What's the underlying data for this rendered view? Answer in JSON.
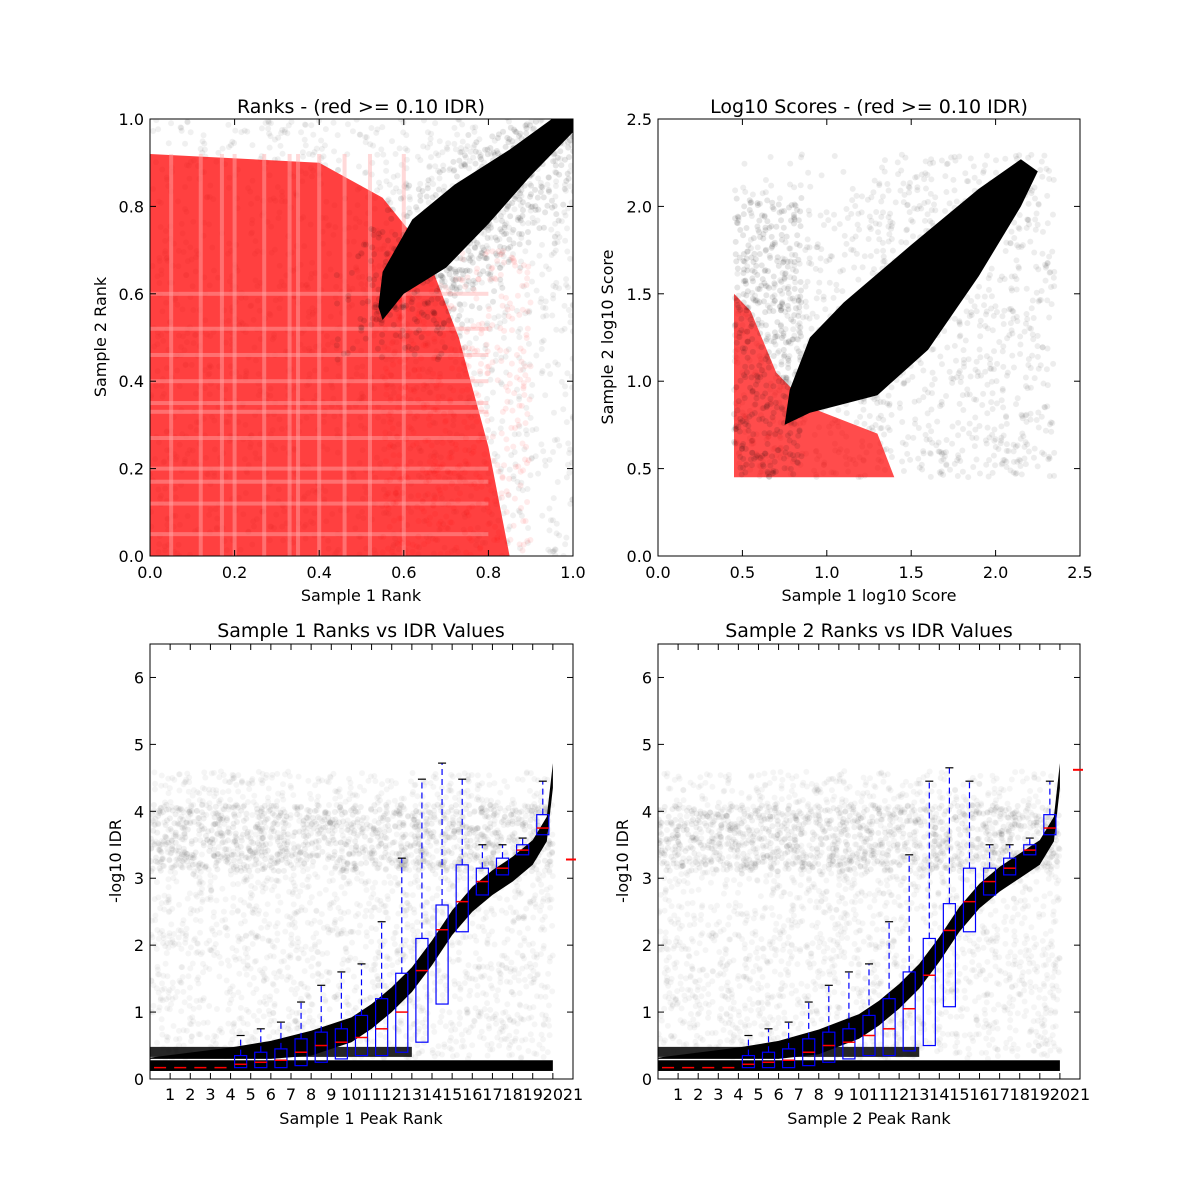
{
  "chart_data": [
    {
      "id": "ranks",
      "type": "scatter",
      "title": "Ranks - (red >= 0.10 IDR)",
      "xlabel": "Sample 1 Rank",
      "ylabel": "Sample 2 Rank",
      "xlim": [
        0.0,
        1.0
      ],
      "ylim": [
        0.0,
        1.0
      ],
      "xticks": [
        0.0,
        0.2,
        0.4,
        0.6,
        0.8,
        1.0
      ],
      "yticks": [
        0.0,
        0.2,
        0.4,
        0.6,
        0.8,
        1.0
      ],
      "xtick_labels": [
        "0.0",
        "0.2",
        "0.4",
        "0.6",
        "0.8",
        "1.0"
      ],
      "ytick_labels": [
        "0.0",
        "0.2",
        "0.4",
        "0.6",
        "0.8",
        "1.0"
      ],
      "series_colors": {
        "passing": "#000000",
        "failing": "#ff0000"
      },
      "regions": {
        "dense_band": [
          [
            0.55,
            0.54
          ],
          [
            0.6,
            0.6
          ],
          [
            0.7,
            0.66
          ],
          [
            0.8,
            0.76
          ],
          [
            0.9,
            0.87
          ],
          [
            1.0,
            0.97
          ],
          [
            1.0,
            1.0
          ],
          [
            0.95,
            1.0
          ],
          [
            0.85,
            0.93
          ],
          [
            0.72,
            0.85
          ],
          [
            0.62,
            0.77
          ],
          [
            0.55,
            0.65
          ],
          [
            0.54,
            0.57
          ]
        ],
        "red_region": [
          [
            0.0,
            0.0
          ],
          [
            0.85,
            0.0
          ],
          [
            0.8,
            0.25
          ],
          [
            0.73,
            0.5
          ],
          [
            0.65,
            0.7
          ],
          [
            0.55,
            0.82
          ],
          [
            0.4,
            0.9
          ],
          [
            0.0,
            0.92
          ]
        ]
      }
    },
    {
      "id": "scores",
      "type": "scatter",
      "title": "Log10 Scores - (red >= 0.10 IDR)",
      "xlabel": "Sample 1 log10 Score",
      "ylabel": "Sample 2 log10 Score",
      "xlim": [
        0.0,
        2.5
      ],
      "ylim": [
        0.0,
        2.5
      ],
      "xticks": [
        0.0,
        0.5,
        1.0,
        1.5,
        2.0,
        2.5
      ],
      "yticks": [
        0.0,
        0.5,
        1.0,
        1.5,
        2.0,
        2.5
      ],
      "xtick_labels": [
        "0.0",
        "0.5",
        "1.0",
        "1.5",
        "2.0",
        "2.5"
      ],
      "ytick_labels": [
        "0.0",
        "0.5",
        "1.0",
        "1.5",
        "2.0",
        "2.5"
      ],
      "series_colors": {
        "passing": "#000000",
        "failing": "#ff0000"
      },
      "regions": {
        "dense_band": [
          [
            0.75,
            0.75
          ],
          [
            0.9,
            0.82
          ],
          [
            1.3,
            0.92
          ],
          [
            1.6,
            1.18
          ],
          [
            1.9,
            1.6
          ],
          [
            2.15,
            2.0
          ],
          [
            2.25,
            2.2
          ],
          [
            2.15,
            2.27
          ],
          [
            1.9,
            2.1
          ],
          [
            1.5,
            1.78
          ],
          [
            1.1,
            1.45
          ],
          [
            0.9,
            1.25
          ],
          [
            0.78,
            0.95
          ]
        ],
        "red_region": [
          [
            0.45,
            0.45
          ],
          [
            1.4,
            0.45
          ],
          [
            1.3,
            0.7
          ],
          [
            0.9,
            0.85
          ],
          [
            0.7,
            1.05
          ],
          [
            0.55,
            1.4
          ],
          [
            0.45,
            1.5
          ]
        ]
      }
    },
    {
      "id": "s1idr",
      "type": "box",
      "title": "Sample 1 Ranks vs IDR Values",
      "xlabel": "Sample 1 Peak Rank",
      "ylabel": "-log10 IDR",
      "xlim": [
        0,
        21
      ],
      "ylim": [
        0,
        6.5
      ],
      "yticks": [
        0,
        1,
        2,
        3,
        4,
        5,
        6
      ],
      "ytick_labels": [
        "0",
        "1",
        "2",
        "3",
        "4",
        "5",
        "6"
      ],
      "xtick_labels": [
        "1",
        "2",
        "3",
        "4",
        "5",
        "6",
        "7",
        "8",
        "9",
        "10",
        "11",
        "12",
        "13",
        "14",
        "15",
        "16",
        "17",
        "18",
        "19",
        "20",
        "21"
      ],
      "box_color": "#0000ff",
      "median_color": "#ff0000",
      "curve": [
        [
          0,
          0.2
        ],
        [
          4,
          0.35
        ],
        [
          6,
          0.45
        ],
        [
          8,
          0.6
        ],
        [
          10,
          0.8
        ],
        [
          11,
          1.0
        ],
        [
          12,
          1.25
        ],
        [
          13,
          1.55
        ],
        [
          14,
          1.95
        ],
        [
          15,
          2.4
        ],
        [
          16,
          2.75
        ],
        [
          17,
          3.0
        ],
        [
          18,
          3.2
        ],
        [
          19,
          3.45
        ],
        [
          19.7,
          3.8
        ],
        [
          20,
          4.6
        ]
      ],
      "boxes": [
        {
          "pos": 0.5,
          "q1": 0.17,
          "med": 0.17,
          "q3": 0.17,
          "lo": 0.17,
          "hi": 0.17
        },
        {
          "pos": 1.5,
          "q1": 0.17,
          "med": 0.17,
          "q3": 0.17,
          "lo": 0.17,
          "hi": 0.17
        },
        {
          "pos": 2.5,
          "q1": 0.17,
          "med": 0.17,
          "q3": 0.17,
          "lo": 0.17,
          "hi": 0.17
        },
        {
          "pos": 3.5,
          "q1": 0.17,
          "med": 0.17,
          "q3": 0.17,
          "lo": 0.17,
          "hi": 0.17
        },
        {
          "pos": 4.5,
          "q1": 0.17,
          "med": 0.22,
          "q3": 0.35,
          "lo": 0.17,
          "hi": 0.65
        },
        {
          "pos": 5.5,
          "q1": 0.17,
          "med": 0.25,
          "q3": 0.4,
          "lo": 0.17,
          "hi": 0.75
        },
        {
          "pos": 6.5,
          "q1": 0.17,
          "med": 0.28,
          "q3": 0.45,
          "lo": 0.17,
          "hi": 0.85
        },
        {
          "pos": 7.5,
          "q1": 0.2,
          "med": 0.4,
          "q3": 0.6,
          "lo": 0.17,
          "hi": 1.15
        },
        {
          "pos": 8.5,
          "q1": 0.25,
          "med": 0.5,
          "q3": 0.7,
          "lo": 0.17,
          "hi": 1.4
        },
        {
          "pos": 9.5,
          "q1": 0.3,
          "med": 0.55,
          "q3": 0.75,
          "lo": 0.17,
          "hi": 1.6
        },
        {
          "pos": 10.5,
          "q1": 0.35,
          "med": 0.62,
          "q3": 0.95,
          "lo": 0.17,
          "hi": 1.72
        },
        {
          "pos": 11.5,
          "q1": 0.35,
          "med": 0.75,
          "q3": 1.2,
          "lo": 0.17,
          "hi": 2.35
        },
        {
          "pos": 12.5,
          "q1": 0.4,
          "med": 1.0,
          "q3": 1.58,
          "lo": 0.17,
          "hi": 3.3
        },
        {
          "pos": 13.5,
          "q1": 0.55,
          "med": 1.62,
          "q3": 2.1,
          "lo": 0.17,
          "hi": 4.48
        },
        {
          "pos": 14.5,
          "q1": 1.12,
          "med": 2.23,
          "q3": 2.6,
          "lo": 0.17,
          "hi": 4.72
        },
        {
          "pos": 15.5,
          "q1": 2.2,
          "med": 2.65,
          "q3": 3.2,
          "lo": 1.0,
          "hi": 4.48
        },
        {
          "pos": 16.5,
          "q1": 2.75,
          "med": 2.95,
          "q3": 3.15,
          "lo": 2.15,
          "hi": 3.5
        },
        {
          "pos": 17.5,
          "q1": 3.05,
          "med": 3.15,
          "q3": 3.3,
          "lo": 2.8,
          "hi": 3.5
        },
        {
          "pos": 18.5,
          "q1": 3.35,
          "med": 3.42,
          "q3": 3.5,
          "lo": 3.05,
          "hi": 3.6
        },
        {
          "pos": 19.5,
          "q1": 3.65,
          "med": 3.75,
          "q3": 3.95,
          "lo": 3.2,
          "hi": 4.45
        }
      ],
      "outlier_mark": {
        "x": 20.85,
        "y": 3.28
      }
    },
    {
      "id": "s2idr",
      "type": "box",
      "title": "Sample 2 Ranks vs IDR Values",
      "xlabel": "Sample 2 Peak Rank",
      "ylabel": "-log10 IDR",
      "xlim": [
        0,
        21
      ],
      "ylim": [
        0,
        6.5
      ],
      "yticks": [
        0,
        1,
        2,
        3,
        4,
        5,
        6
      ],
      "ytick_labels": [
        "0",
        "1",
        "2",
        "3",
        "4",
        "5",
        "6"
      ],
      "xtick_labels": [
        "1",
        "2",
        "3",
        "4",
        "5",
        "6",
        "7",
        "8",
        "9",
        "10",
        "11",
        "12",
        "13",
        "14",
        "15",
        "16",
        "17",
        "18",
        "19",
        "20",
        "21"
      ],
      "box_color": "#0000ff",
      "median_color": "#ff0000",
      "curve": [
        [
          0,
          0.2
        ],
        [
          4,
          0.35
        ],
        [
          6,
          0.45
        ],
        [
          8,
          0.62
        ],
        [
          10,
          0.85
        ],
        [
          11,
          1.05
        ],
        [
          12,
          1.3
        ],
        [
          13,
          1.6
        ],
        [
          14,
          2.0
        ],
        [
          15,
          2.45
        ],
        [
          16,
          2.8
        ],
        [
          17,
          3.05
        ],
        [
          18,
          3.25
        ],
        [
          19,
          3.45
        ],
        [
          19.7,
          3.8
        ],
        [
          20,
          4.6
        ]
      ],
      "boxes": [
        {
          "pos": 0.5,
          "q1": 0.17,
          "med": 0.17,
          "q3": 0.17,
          "lo": 0.17,
          "hi": 0.17
        },
        {
          "pos": 1.5,
          "q1": 0.17,
          "med": 0.17,
          "q3": 0.17,
          "lo": 0.17,
          "hi": 0.17
        },
        {
          "pos": 2.5,
          "q1": 0.17,
          "med": 0.17,
          "q3": 0.17,
          "lo": 0.17,
          "hi": 0.17
        },
        {
          "pos": 3.5,
          "q1": 0.17,
          "med": 0.17,
          "q3": 0.17,
          "lo": 0.17,
          "hi": 0.17
        },
        {
          "pos": 4.5,
          "q1": 0.17,
          "med": 0.22,
          "q3": 0.35,
          "lo": 0.17,
          "hi": 0.65
        },
        {
          "pos": 5.5,
          "q1": 0.17,
          "med": 0.25,
          "q3": 0.4,
          "lo": 0.17,
          "hi": 0.75
        },
        {
          "pos": 6.5,
          "q1": 0.17,
          "med": 0.28,
          "q3": 0.45,
          "lo": 0.17,
          "hi": 0.85
        },
        {
          "pos": 7.5,
          "q1": 0.2,
          "med": 0.4,
          "q3": 0.6,
          "lo": 0.17,
          "hi": 1.15
        },
        {
          "pos": 8.5,
          "q1": 0.25,
          "med": 0.5,
          "q3": 0.7,
          "lo": 0.17,
          "hi": 1.4
        },
        {
          "pos": 9.5,
          "q1": 0.3,
          "med": 0.55,
          "q3": 0.75,
          "lo": 0.17,
          "hi": 1.6
        },
        {
          "pos": 10.5,
          "q1": 0.35,
          "med": 0.65,
          "q3": 0.95,
          "lo": 0.17,
          "hi": 1.72
        },
        {
          "pos": 11.5,
          "q1": 0.35,
          "med": 0.75,
          "q3": 1.2,
          "lo": 0.17,
          "hi": 2.35
        },
        {
          "pos": 12.5,
          "q1": 0.42,
          "med": 1.05,
          "q3": 1.6,
          "lo": 0.17,
          "hi": 3.35
        },
        {
          "pos": 13.5,
          "q1": 0.5,
          "med": 1.55,
          "q3": 2.1,
          "lo": 0.17,
          "hi": 4.45
        },
        {
          "pos": 14.5,
          "q1": 1.08,
          "med": 2.22,
          "q3": 2.62,
          "lo": 0.17,
          "hi": 4.65
        },
        {
          "pos": 15.5,
          "q1": 2.2,
          "med": 2.65,
          "q3": 3.15,
          "lo": 1.0,
          "hi": 4.45
        },
        {
          "pos": 16.5,
          "q1": 2.75,
          "med": 2.95,
          "q3": 3.15,
          "lo": 2.15,
          "hi": 3.5
        },
        {
          "pos": 17.5,
          "q1": 3.05,
          "med": 3.15,
          "q3": 3.3,
          "lo": 2.8,
          "hi": 3.5
        },
        {
          "pos": 18.5,
          "q1": 3.35,
          "med": 3.42,
          "q3": 3.5,
          "lo": 3.05,
          "hi": 3.6
        },
        {
          "pos": 19.5,
          "q1": 3.65,
          "med": 3.75,
          "q3": 3.95,
          "lo": 3.2,
          "hi": 4.45
        }
      ],
      "outlier_mark": {
        "x": 20.85,
        "y": 4.62
      }
    }
  ]
}
